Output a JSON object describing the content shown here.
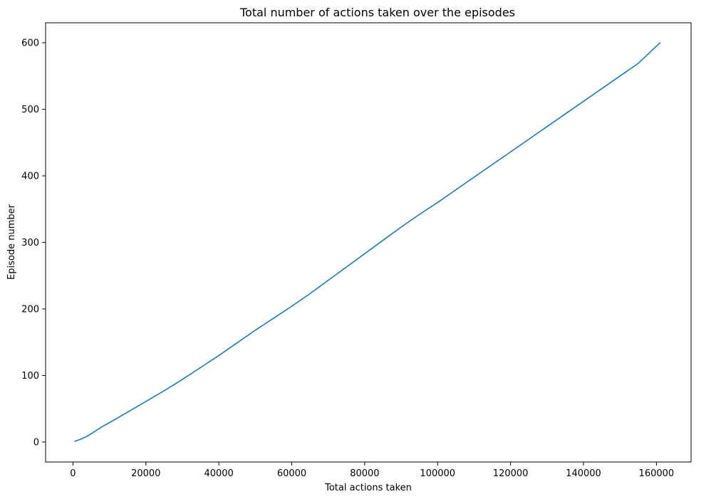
{
  "chart_data": {
    "type": "line",
    "title": "Total number of actions taken over the episodes",
    "xlabel": "Total actions taken",
    "ylabel": "Episode number",
    "xlim": [
      -7500,
      169500
    ],
    "ylim": [
      -30,
      630
    ],
    "xticks": [
      0,
      20000,
      40000,
      60000,
      80000,
      100000,
      120000,
      140000,
      160000
    ],
    "yticks": [
      0,
      100,
      200,
      300,
      400,
      500,
      600
    ],
    "grid": false,
    "series": [
      {
        "color": "#1f77b4",
        "x": [
          500,
          2000,
          4000,
          6000,
          8000,
          10000,
          15000,
          20000,
          25000,
          30000,
          35000,
          40000,
          45000,
          50000,
          55000,
          60000,
          65000,
          70000,
          75000,
          80000,
          85000,
          90000,
          95000,
          100000,
          105000,
          110000,
          115000,
          120000,
          125000,
          130000,
          135000,
          140000,
          145000,
          150000,
          155000,
          161000
        ],
        "y": [
          1,
          4,
          9,
          16,
          23,
          29,
          45,
          61,
          77,
          94,
          112,
          130,
          149,
          168,
          186,
          204,
          223,
          243,
          263,
          283,
          303,
          323,
          342,
          360,
          379,
          398,
          417,
          436,
          455,
          474,
          493,
          512,
          531,
          550,
          569,
          600
        ]
      }
    ]
  }
}
